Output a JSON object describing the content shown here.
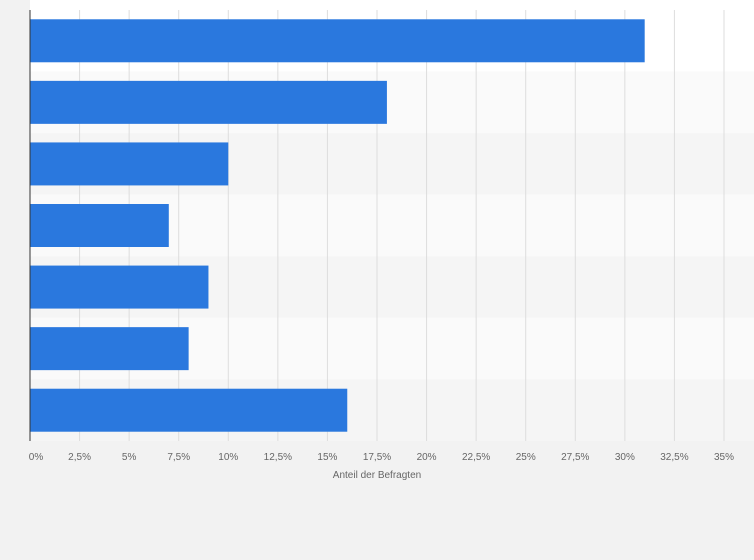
{
  "chart_data": {
    "type": "bar",
    "orientation": "horizontal",
    "categories": [
      "",
      "",
      "",
      "",
      "",
      "",
      ""
    ],
    "values": [
      31,
      18,
      10,
      7,
      9,
      8,
      16
    ],
    "title": "",
    "xlabel": "Anteil der Befragten",
    "ylabel": "",
    "xlim": [
      0,
      35
    ],
    "x_ticks": [
      0,
      2.5,
      5,
      7.5,
      10,
      12.5,
      15,
      17.5,
      20,
      22.5,
      25,
      27.5,
      30,
      32.5,
      35
    ],
    "x_tick_labels": [
      "0%",
      "2,5%",
      "5%",
      "7,5%",
      "10%",
      "12,5%",
      "15%",
      "17,5%",
      "20%",
      "22,5%",
      "25%",
      "27,5%",
      "30%",
      "32,5%",
      "35%"
    ],
    "grid": true,
    "colors": {
      "bar": "#2a78de",
      "plot_bg": "#ffffff",
      "band_alt": "#f5f5f5",
      "page_bg": "#f2f2f2",
      "grid": "#dddddd",
      "axis": "#333333"
    }
  }
}
